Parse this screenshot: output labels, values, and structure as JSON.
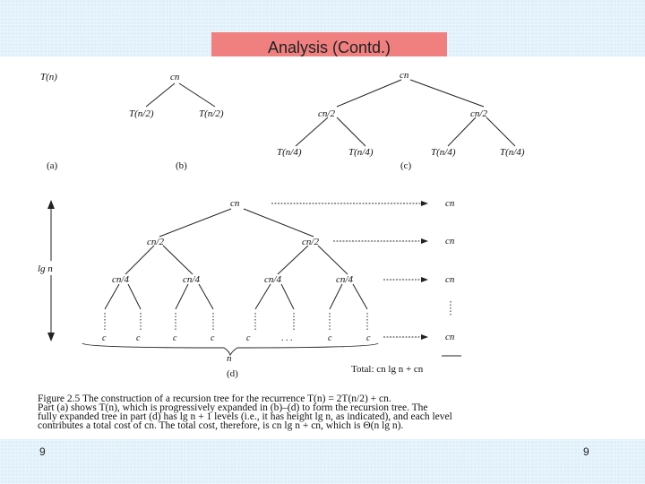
{
  "slide": {
    "title": "Analysis (Contd.)",
    "number_left": "9",
    "number_right": "9"
  },
  "figure": {
    "panel_a": {
      "root": "T(n)",
      "label": "(a)"
    },
    "panel_b": {
      "root": "cn",
      "left": "T(n/2)",
      "right": "T(n/2)",
      "label": "(b)"
    },
    "panel_c": {
      "root": "cn",
      "mid_left": "cn/2",
      "mid_right": "cn/2",
      "leaves": [
        "T(n/4)",
        "T(n/4)",
        "T(n/4)",
        "T(n/4)"
      ],
      "label": "(c)"
    },
    "panel_d": {
      "root": "cn",
      "level1": [
        "cn/2",
        "cn/2"
      ],
      "level2": [
        "cn/4",
        "cn/4",
        "cn/4",
        "cn/4"
      ],
      "leaves": [
        "c",
        "c",
        "c",
        "c",
        "c",
        ". . .",
        "c",
        "c"
      ],
      "level_costs": [
        "cn",
        "cn",
        "cn",
        "cn"
      ],
      "height_label": "lg n",
      "width_label": "n",
      "label": "(d)",
      "total": "Total: cn lg n + cn"
    },
    "caption": {
      "line1": "Figure 2.5   The construction of a recursion tree for the recurrence T(n) = 2T(n/2) + cn.",
      "line2": "Part (a) shows T(n), which is progressively expanded in (b)–(d) to form the recursion tree. The",
      "line3": "fully expanded tree in part (d) has lg n + 1 levels (i.e., it has height lg n, as indicated), and each level",
      "line4": "contributes a total cost of cn. The total cost, therefore, is cn lg n + cn, which is Θ(n lg n)."
    }
  }
}
